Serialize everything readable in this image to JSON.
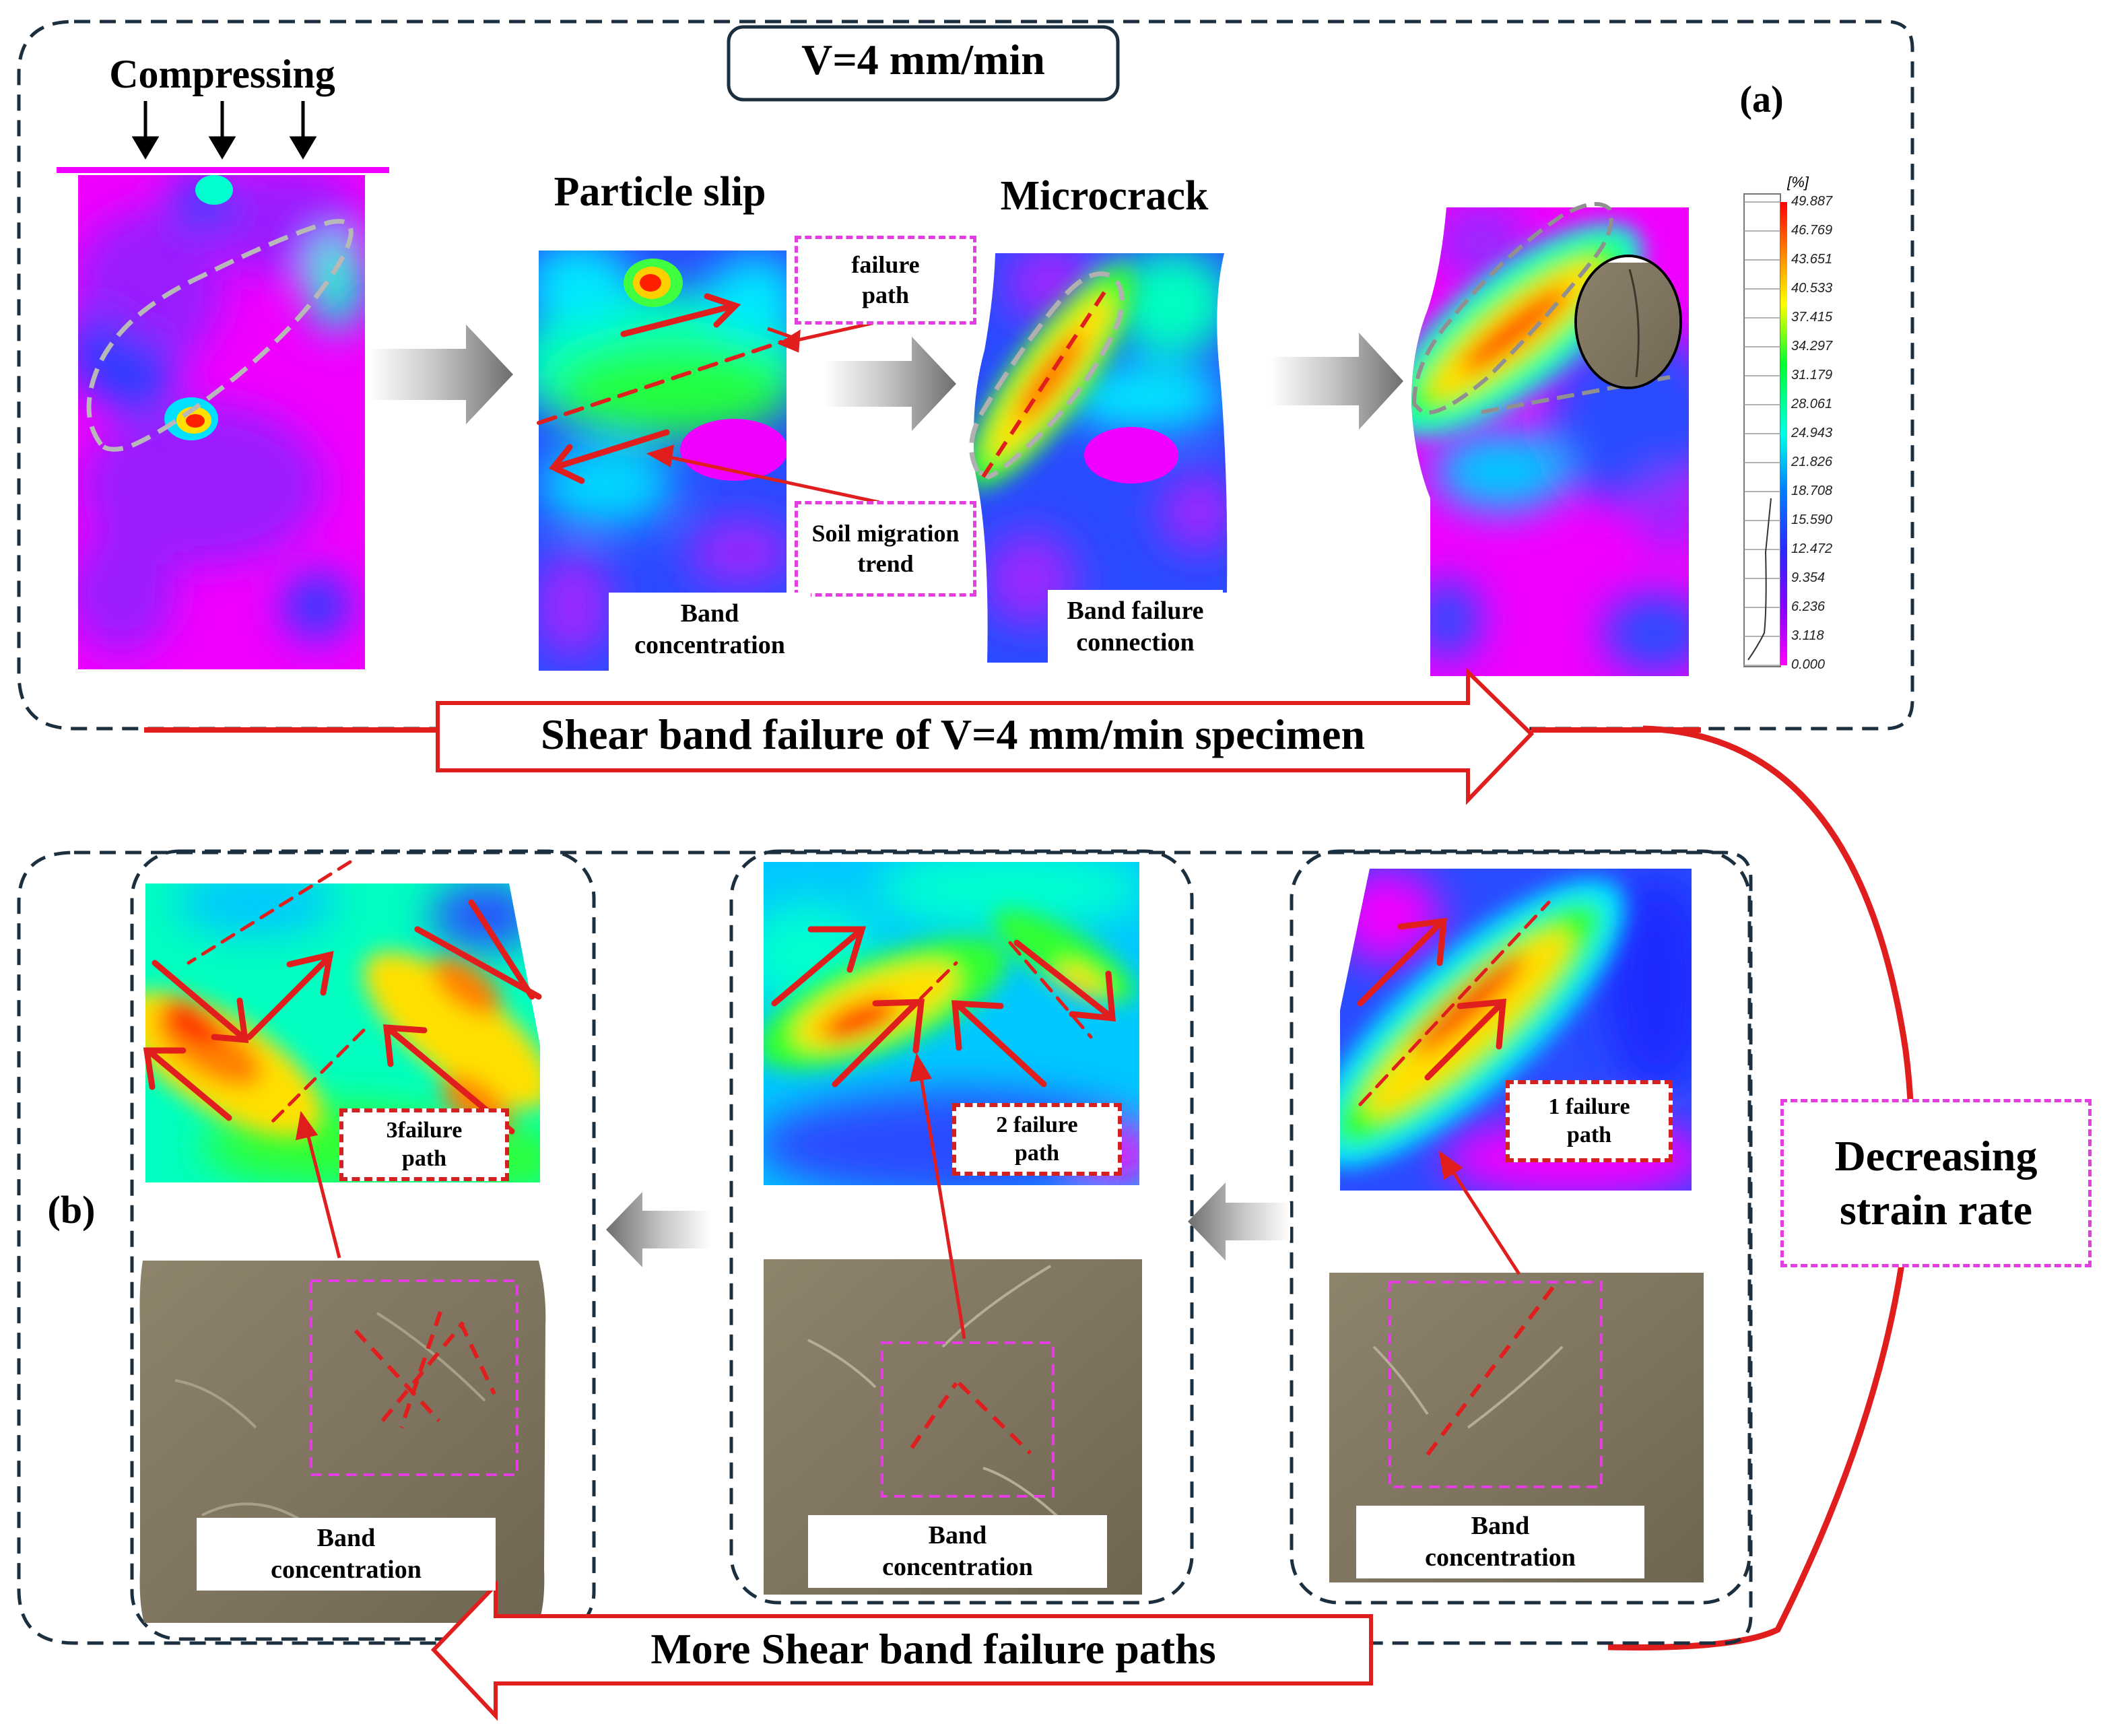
{
  "panel_a": {
    "velocity_label": "V=4 mm/min",
    "panel_tag": "(a)",
    "compressing_label": "Compressing",
    "stage2_title": "Particle slip",
    "stage3_title": "Microcrack",
    "failure_path_label": "failure\npath",
    "soil_migration_label": "Soil migration\ntrend",
    "band_concentration_label": "Band\nconcentration",
    "band_failure_connection_label": "Band failure\nconnection",
    "legend": {
      "unit": "[%]",
      "values": [
        "49.887",
        "46.769",
        "43.651",
        "40.533",
        "37.415",
        "34.297",
        "31.179",
        "28.061",
        "24.943",
        "21.826",
        "18.708",
        "15.590",
        "12.472",
        "9.354",
        "6.236",
        "3.118",
        "0.000"
      ],
      "colors": [
        "#ff0000",
        "#ff4a00",
        "#ff8f00",
        "#ffc800",
        "#ffff00",
        "#c8ff00",
        "#6cff00",
        "#00ff30",
        "#00ff9c",
        "#00ffe6",
        "#00c8ff",
        "#0080ff",
        "#1f3cff",
        "#3a10ff",
        "#6a00ff",
        "#c800ff",
        "#ff00ff"
      ]
    },
    "banner_label": "Shear band failure of V=4 mm/min specimen"
  },
  "panel_b": {
    "panel_tag": "(b)",
    "strain_rate_label": "Decreasing\nstrain rate",
    "cases": [
      {
        "failure_label": "3failure\npath",
        "band_label": "Band\nconcentration"
      },
      {
        "failure_label": "2 failure\npath",
        "band_label": "Band\nconcentration"
      },
      {
        "failure_label": "1 failure\npath",
        "band_label": "Band\nconcentration"
      }
    ],
    "banner_label": "More Shear band failure paths"
  },
  "colors": {
    "frame": "#1c2f3f",
    "arrow_red": "#e01e1e",
    "dash_pink": "#e43de0",
    "dash_red": "#d42020",
    "magenta": "#f000ff",
    "violet": "#8a28ff",
    "blue": "#2a4bff",
    "rock": "#8a8068"
  }
}
